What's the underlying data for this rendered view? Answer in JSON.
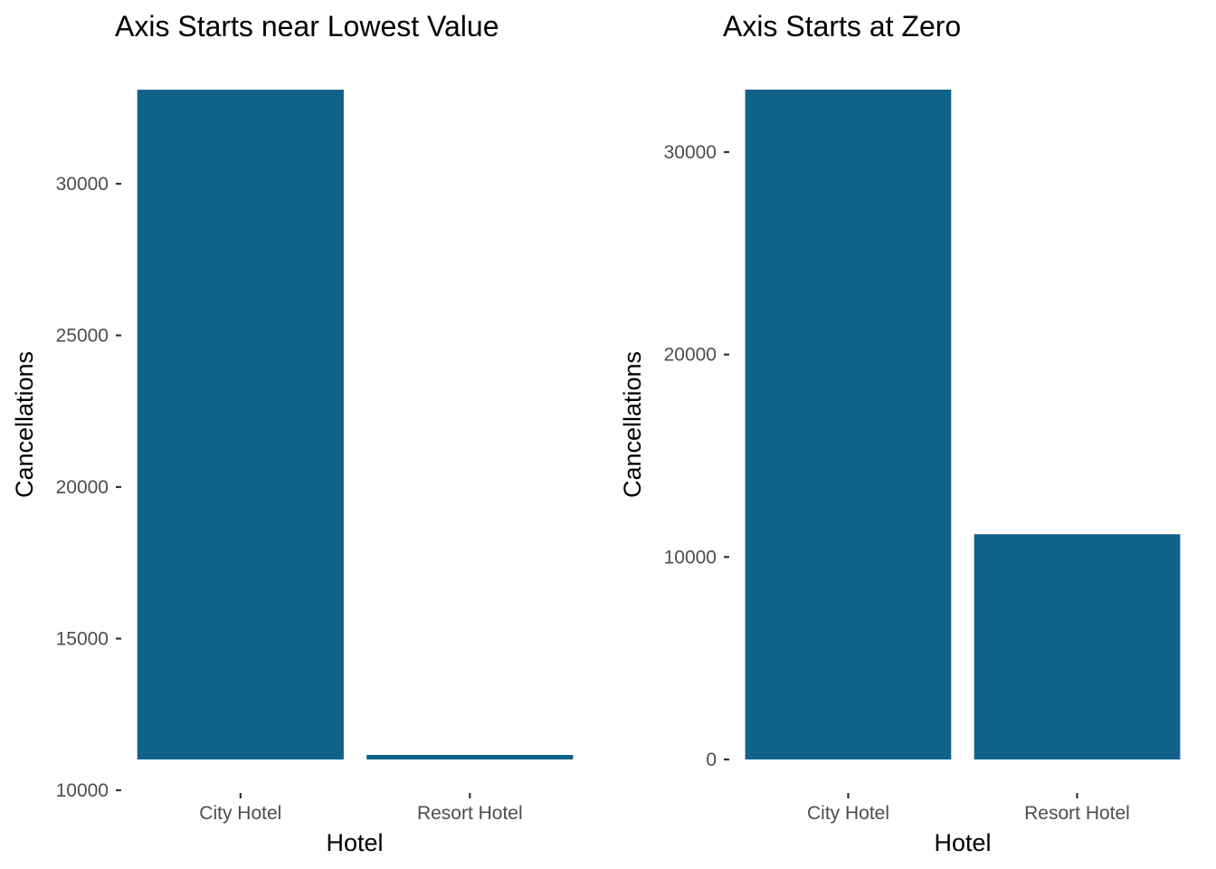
{
  "chart_data": [
    {
      "type": "bar",
      "title": "Axis Starts near Lowest Value",
      "xlabel": "Hotel",
      "ylabel": "Cancellations",
      "categories": [
        "City Hotel",
        "Resort Hotel"
      ],
      "values": [
        33102,
        11122
      ],
      "ylim": [
        10000,
        33102
      ],
      "yticks": [
        10000,
        15000,
        20000,
        25000,
        30000
      ],
      "ytick_labels": [
        "10000",
        "15000",
        "20000",
        "25000",
        "30000"
      ],
      "bar_color": "#10628a",
      "grid": false,
      "legend": "none"
    },
    {
      "type": "bar",
      "title": "Axis Starts at Zero",
      "xlabel": "Hotel",
      "ylabel": "Cancellations",
      "categories": [
        "City Hotel",
        "Resort Hotel"
      ],
      "values": [
        33102,
        11122
      ],
      "ylim": [
        0,
        33102
      ],
      "yticks": [
        0,
        10000,
        20000,
        30000
      ],
      "ytick_labels": [
        "0",
        "10000",
        "20000",
        "30000"
      ],
      "bar_color": "#10628a",
      "grid": false,
      "legend": "none"
    }
  ]
}
